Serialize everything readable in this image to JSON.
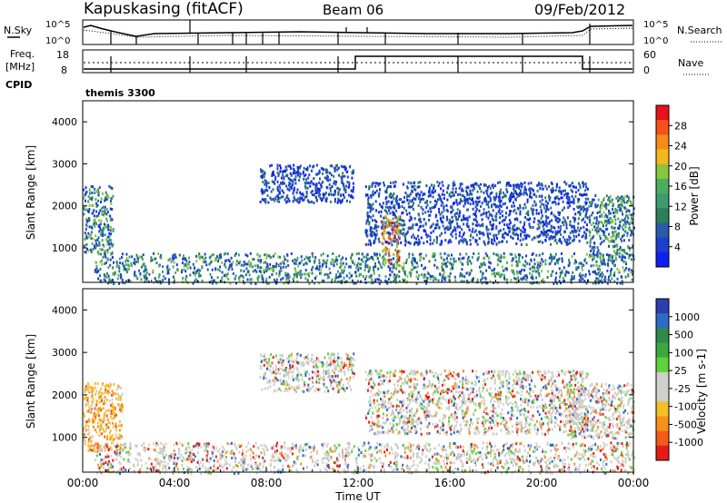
{
  "header": {
    "station": "Kapuskasing (fitACF)",
    "beam": "Beam 06",
    "date": "09/Feb/2012"
  },
  "noise_panel": {
    "left_label": "N.Sky",
    "left_ticks": [
      "10^5",
      "10^0"
    ],
    "right_ticks": [
      "10^5",
      "10^0"
    ],
    "right_label": "N.Search"
  },
  "freq_panel": {
    "left_label_line1": "Freq.",
    "left_label_line2": "[MHz]",
    "left_ticks": [
      18,
      8
    ],
    "right_ticks": [
      60,
      0
    ],
    "right_label": "Nave"
  },
  "cpid": {
    "label": "CPID",
    "value": "themis 3300"
  },
  "chart_data": [
    {
      "type": "heatmap",
      "name": "power",
      "ylabel": "Slant Range [km]",
      "yticks": [
        1000,
        2000,
        3000,
        4000
      ],
      "ylim": [
        180,
        4500
      ],
      "xlim": [
        0,
        24
      ],
      "colorbar": {
        "label": "Power [dB]",
        "ticks": [
          "28",
          "24",
          "20",
          "16",
          "12",
          "8",
          "4"
        ],
        "colors": [
          "#e8121a",
          "#f8501a",
          "#f88a1a",
          "#f4b81c",
          "#8ac63c",
          "#4aae5c",
          "#3f9a72",
          "#2d7f5a",
          "#2a5aa8",
          "#1a3fd0",
          "#1020f0"
        ]
      },
      "regions": [
        {
          "t": [
            0.0,
            1.3
          ],
          "r": [
            900,
            2500
          ],
          "level": "mid"
        },
        {
          "t": [
            0.5,
            24.0
          ],
          "r": [
            180,
            900
          ],
          "level": "mid"
        },
        {
          "t": [
            7.7,
            11.8
          ],
          "r": [
            2100,
            3000
          ],
          "level": "low"
        },
        {
          "t": [
            12.3,
            22.0
          ],
          "r": [
            1100,
            2600
          ],
          "level": "low"
        },
        {
          "t": [
            13.0,
            13.8
          ],
          "r": [
            600,
            1800
          ],
          "level": "high"
        },
        {
          "t": [
            22.0,
            24.0
          ],
          "r": [
            800,
            2300
          ],
          "level": "mid"
        }
      ]
    },
    {
      "type": "heatmap",
      "name": "velocity",
      "ylabel": "Slant Range [km]",
      "yticks": [
        1000,
        2000,
        3000,
        4000
      ],
      "ylim": [
        180,
        4500
      ],
      "xlim": [
        0,
        24
      ],
      "xlabel": "Time UT",
      "xticks": [
        "00:00",
        "04:00",
        "08:00",
        "12:00",
        "16:00",
        "20:00",
        "00:00"
      ],
      "colorbar": {
        "label": "Velocity [m s-1]",
        "ticks": [
          "1000",
          "500",
          "100",
          "25",
          "-25",
          "-100",
          "-500",
          "-1000"
        ],
        "colors": [
          "#2a3fb0",
          "#2e6ac6",
          "#2f8a4c",
          "#3aa83c",
          "#5ed23a",
          "#cfcfcc",
          "#cfcfcc",
          "#f4c028",
          "#f6921c",
          "#f25c18",
          "#e61a18"
        ]
      },
      "regions": [
        {
          "t": [
            0.0,
            1.7
          ],
          "r": [
            700,
            2300
          ],
          "level": "negative"
        },
        {
          "t": [
            0.5,
            24.0
          ],
          "r": [
            180,
            900
          ],
          "level": "near-zero"
        },
        {
          "t": [
            7.7,
            11.8
          ],
          "r": [
            2100,
            3000
          ],
          "level": "near-zero"
        },
        {
          "t": [
            12.3,
            22.0
          ],
          "r": [
            1100,
            2600
          ],
          "level": "near-zero"
        },
        {
          "t": [
            21.0,
            24.0
          ],
          "r": [
            1000,
            2300
          ],
          "level": "near-zero"
        }
      ]
    }
  ]
}
